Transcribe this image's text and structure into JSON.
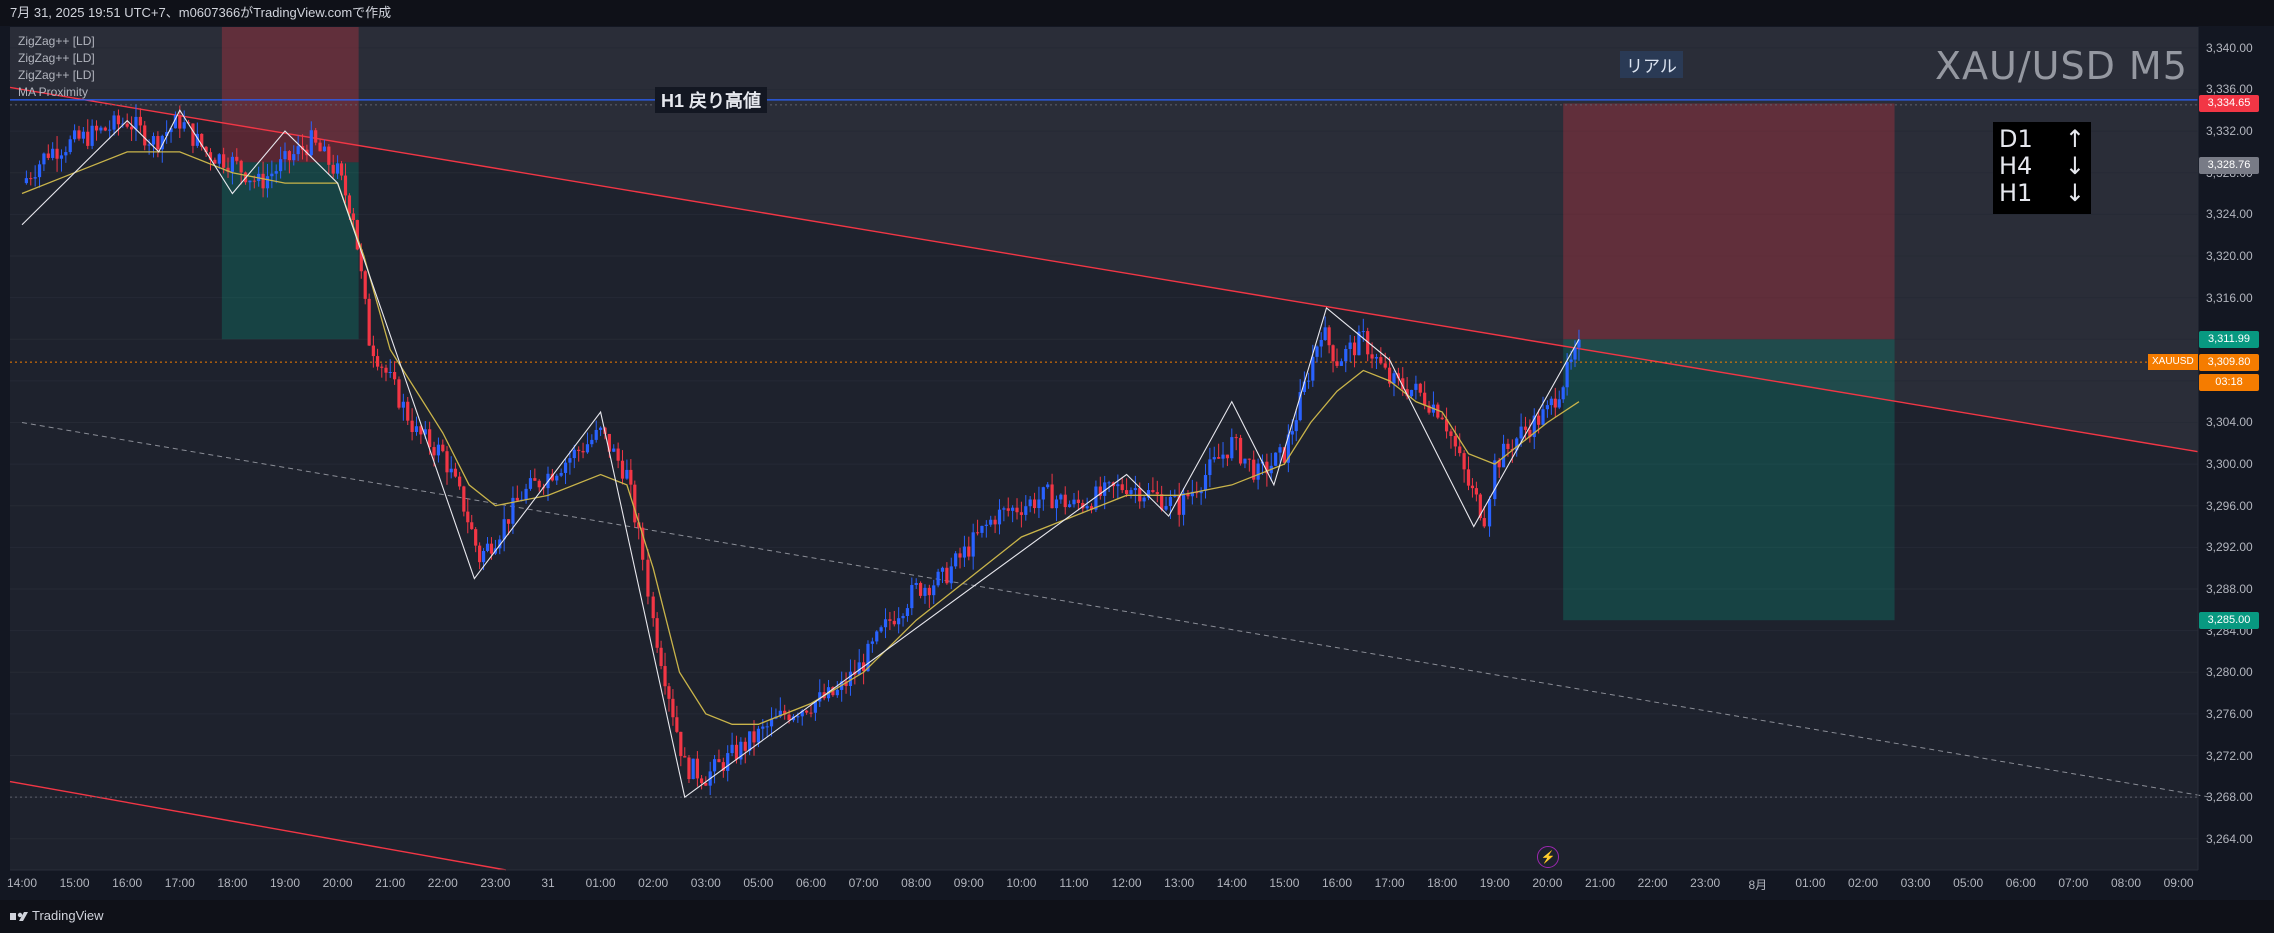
{
  "header": {
    "text": "7月 31, 2025 19:51 UTC+7、m0607366がTradingView.comで作成"
  },
  "legend": [
    "ZigZag++ [LD]",
    "ZigZag++ [LD]",
    "ZigZag++ [LD]",
    "MA Proximity"
  ],
  "watermark": "XAU/USD M5",
  "badge": "リアル",
  "h1_label": "H1 戻り高値",
  "trend": [
    {
      "tf": "D1",
      "dir": "↑"
    },
    {
      "tf": "H4",
      "dir": "↓"
    },
    {
      "tf": "H1",
      "dir": "↓"
    }
  ],
  "symbol_tag": "XAUUSD",
  "footer": {
    "brand": "TradingView"
  },
  "colors": {
    "up": "#2962ff",
    "down": "#f23645",
    "ma": "#c9b44a",
    "trendline": "#f23645",
    "hline": "#2962ff"
  },
  "price_labels": [
    {
      "price": 3334.65,
      "text": "3,334.65",
      "color": "#f23645"
    },
    {
      "price": 3328.76,
      "text": "3,328.76",
      "color": "#787b86"
    },
    {
      "price": 3311.99,
      "text": "3,311.99",
      "color": "#089981"
    },
    {
      "price": 3309.8,
      "text": "3,309.80",
      "color": "#f57c00"
    },
    {
      "price": 3307.9,
      "text": "03:18",
      "color": "#f57c00"
    },
    {
      "price": 3285.0,
      "text": "3,285.00",
      "color": "#089981"
    }
  ],
  "chart_data": {
    "type": "candlestick",
    "symbol": "XAU/USD",
    "timeframe": "M5",
    "ylim": [
      3261,
      3342
    ],
    "y_ticks": [
      "3,340.00",
      "3,336.00",
      "3,332.00",
      "3,328.00",
      "3,324.00",
      "3,320.00",
      "3,316.00",
      "3,312.00",
      "3,308.00",
      "3,304.00",
      "3,300.00",
      "3,296.00",
      "3,292.00",
      "3,288.00",
      "3,284.00",
      "3,280.00",
      "3,276.00",
      "3,272.00",
      "3,268.00",
      "3,264.00"
    ],
    "x_ticks": [
      "14:00",
      "15:00",
      "16:00",
      "17:00",
      "18:00",
      "19:00",
      "20:00",
      "21:00",
      "22:00",
      "23:00",
      "31",
      "01:00",
      "02:00",
      "03:00",
      "05:00",
      "06:00",
      "07:00",
      "08:00",
      "09:00",
      "10:00",
      "11:00",
      "12:00",
      "13:00",
      "14:00",
      "15:00",
      "16:00",
      "17:00",
      "18:00",
      "19:00",
      "20:00",
      "21:00",
      "22:00",
      "23:00",
      "8月",
      "01:00",
      "02:00",
      "03:00",
      "05:00",
      "06:00",
      "07:00",
      "08:00",
      "09:00"
    ],
    "price_path": [
      [
        0.0,
        3327
      ],
      [
        0.5,
        3330
      ],
      [
        1.0,
        3331
      ],
      [
        2.0,
        3333
      ],
      [
        2.5,
        3331
      ],
      [
        3.0,
        3333
      ],
      [
        3.5,
        3330
      ],
      [
        4.0,
        3329
      ],
      [
        4.5,
        3327
      ],
      [
        5.0,
        3329
      ],
      [
        5.5,
        3331
      ],
      [
        6.0,
        3328
      ],
      [
        6.3,
        3324
      ],
      [
        6.6,
        3312
      ],
      [
        7.0,
        3308
      ],
      [
        7.5,
        3303
      ],
      [
        8.0,
        3301
      ],
      [
        8.4,
        3296
      ],
      [
        8.7,
        3291
      ],
      [
        9.0,
        3293
      ],
      [
        9.5,
        3297
      ],
      [
        10.0,
        3299
      ],
      [
        10.5,
        3301
      ],
      [
        11.0,
        3303
      ],
      [
        11.5,
        3299
      ],
      [
        11.8,
        3291
      ],
      [
        12.0,
        3285
      ],
      [
        12.3,
        3278
      ],
      [
        12.6,
        3271
      ],
      [
        13.0,
        3270
      ],
      [
        13.5,
        3272
      ],
      [
        14.0,
        3274
      ],
      [
        14.5,
        3276
      ],
      [
        15.0,
        3277
      ],
      [
        15.5,
        3278
      ],
      [
        16.0,
        3281
      ],
      [
        16.5,
        3285
      ],
      [
        17.0,
        3288
      ],
      [
        17.5,
        3289
      ],
      [
        18.0,
        3292
      ],
      [
        18.5,
        3295
      ],
      [
        19.0,
        3296
      ],
      [
        19.5,
        3297
      ],
      [
        20.0,
        3296
      ],
      [
        20.5,
        3297
      ],
      [
        21.0,
        3298
      ],
      [
        21.5,
        3297
      ],
      [
        22.0,
        3296
      ],
      [
        22.5,
        3299
      ],
      [
        23.0,
        3302
      ],
      [
        23.5,
        3299
      ],
      [
        24.0,
        3301
      ],
      [
        24.3,
        3306
      ],
      [
        24.7,
        3313
      ],
      [
        25.0,
        3310
      ],
      [
        25.5,
        3312
      ],
      [
        26.0,
        3308
      ],
      [
        26.5,
        3307
      ],
      [
        27.0,
        3305
      ],
      [
        27.5,
        3298
      ],
      [
        27.8,
        3295
      ],
      [
        28.0,
        3300
      ],
      [
        28.5,
        3303
      ],
      [
        29.0,
        3305
      ],
      [
        29.3,
        3308
      ],
      [
        29.6,
        3311
      ]
    ],
    "ma_path": [
      [
        0.0,
        3326
      ],
      [
        1.0,
        3328
      ],
      [
        2.0,
        3330
      ],
      [
        3.0,
        3330
      ],
      [
        4.0,
        3328
      ],
      [
        5.0,
        3327
      ],
      [
        6.0,
        3327
      ],
      [
        6.5,
        3320
      ],
      [
        7.0,
        3311
      ],
      [
        7.5,
        3307
      ],
      [
        8.0,
        3303
      ],
      [
        8.5,
        3298
      ],
      [
        9.0,
        3296
      ],
      [
        10.0,
        3297
      ],
      [
        11.0,
        3299
      ],
      [
        11.5,
        3298
      ],
      [
        12.0,
        3290
      ],
      [
        12.5,
        3280
      ],
      [
        13.0,
        3276
      ],
      [
        13.5,
        3275
      ],
      [
        14.0,
        3275
      ],
      [
        15.0,
        3277
      ],
      [
        16.0,
        3280
      ],
      [
        17.0,
        3285
      ],
      [
        18.0,
        3289
      ],
      [
        19.0,
        3293
      ],
      [
        20.0,
        3295
      ],
      [
        21.0,
        3297
      ],
      [
        22.0,
        3297
      ],
      [
        23.0,
        3298
      ],
      [
        24.0,
        3300
      ],
      [
        24.5,
        3304
      ],
      [
        25.0,
        3307
      ],
      [
        25.5,
        3309
      ],
      [
        26.0,
        3308
      ],
      [
        26.5,
        3306
      ],
      [
        27.0,
        3305
      ],
      [
        27.5,
        3301
      ],
      [
        28.0,
        3300
      ],
      [
        28.5,
        3302
      ],
      [
        29.0,
        3304
      ],
      [
        29.6,
        3306
      ]
    ],
    "zigzag": [
      [
        0.0,
        3323
      ],
      [
        2.0,
        3333
      ],
      [
        2.6,
        3330
      ],
      [
        3.0,
        3334
      ],
      [
        4.0,
        3326
      ],
      [
        5.0,
        3332
      ],
      [
        6.0,
        3327
      ],
      [
        8.6,
        3289
      ],
      [
        11.0,
        3305
      ],
      [
        12.6,
        3268
      ],
      [
        21.0,
        3299
      ],
      [
        21.8,
        3295
      ],
      [
        23.0,
        3306
      ],
      [
        23.8,
        3298
      ],
      [
        24.8,
        3315
      ],
      [
        26.0,
        3310
      ],
      [
        27.6,
        3294
      ],
      [
        29.6,
        3312
      ]
    ],
    "h1_resistance": 3335.0,
    "current_price": 3309.8,
    "prev_low_line": 3268.0,
    "trendline": {
      "p1": [
        0.0,
        3336.0
      ],
      "p2": [
        41.6,
        3301.0
      ]
    },
    "lower_channel": {
      "p1": [
        0.0,
        3269.5
      ],
      "p2": [
        9.2,
        3261.0
      ]
    },
    "dashed_channel": {
      "p1": [
        0.0,
        3304.0
      ],
      "p2": [
        41.6,
        3268.0
      ]
    },
    "zones": [
      {
        "x0": 3.8,
        "x1": 6.4,
        "y0": 3329,
        "y1": 3342,
        "kind": "loss"
      },
      {
        "x0": 3.8,
        "x1": 6.4,
        "y0": 3312,
        "y1": 3329,
        "kind": "profit"
      },
      {
        "x0": 29.3,
        "x1": 35.6,
        "y0": 3311.99,
        "y1": 3334.65,
        "kind": "loss"
      },
      {
        "x0": 29.3,
        "x1": 35.6,
        "y0": 3285.0,
        "y1": 3311.99,
        "kind": "profit"
      }
    ]
  }
}
